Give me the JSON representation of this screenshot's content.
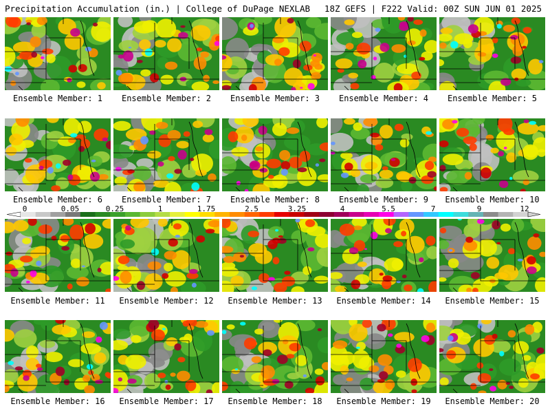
{
  "header": {
    "left_title": "Precipitation Accumulation (in.) | College of DuPage NEXLAB",
    "right_title": "18Z GEFS | F222 Valid: 00Z SUN JUN 01 2025"
  },
  "colorbar": {
    "labels": [
      "0",
      "0.05",
      "0.25",
      "1",
      "1.75",
      "2.5",
      "3.25",
      "4",
      "5.5",
      "7",
      "9",
      "12"
    ],
    "colors": [
      "#e6e6e6",
      "#c8c8c8",
      "#a0a0a0",
      "#787878",
      "#1a6e1a",
      "#2a8a22",
      "#3aa02a",
      "#5ab832",
      "#8ccc3c",
      "#b4dc46",
      "#e6f03c",
      "#ffff00",
      "#ffdc00",
      "#ffb400",
      "#ff8c00",
      "#ff6400",
      "#ff3c00",
      "#e60000",
      "#c80000",
      "#a00014",
      "#8c0032",
      "#a0005a",
      "#c8008c",
      "#e600b4",
      "#ff00e6",
      "#b464ff",
      "#6496ff",
      "#32c8ff",
      "#00ffff",
      "#3cdcdc",
      "#64b4b4",
      "#8c8c8c",
      "#b4b4b4",
      "#d2d2d2"
    ]
  },
  "panels": [
    {
      "label": "Ensemble Member: 1"
    },
    {
      "label": "Ensemble Member: 2"
    },
    {
      "label": "Ensemble Member: 3"
    },
    {
      "label": "Ensemble Member: 4"
    },
    {
      "label": "Ensemble Member: 5"
    },
    {
      "label": "Ensemble Member: 6"
    },
    {
      "label": "Ensemble Member: 7"
    },
    {
      "label": "Ensemble Member: 8"
    },
    {
      "label": "Ensemble Member: 9"
    },
    {
      "label": "Ensemble Member: 10"
    },
    {
      "label": "Ensemble Member: 11"
    },
    {
      "label": "Ensemble Member: 12"
    },
    {
      "label": "Ensemble Member: 13"
    },
    {
      "label": "Ensemble Member: 14"
    },
    {
      "label": "Ensemble Member: 15"
    },
    {
      "label": "Ensemble Member: 16"
    },
    {
      "label": "Ensemble Member: 17"
    },
    {
      "label": "Ensemble Member: 18"
    },
    {
      "label": "Ensemble Member: 19"
    },
    {
      "label": "Ensemble Member: 20"
    }
  ]
}
